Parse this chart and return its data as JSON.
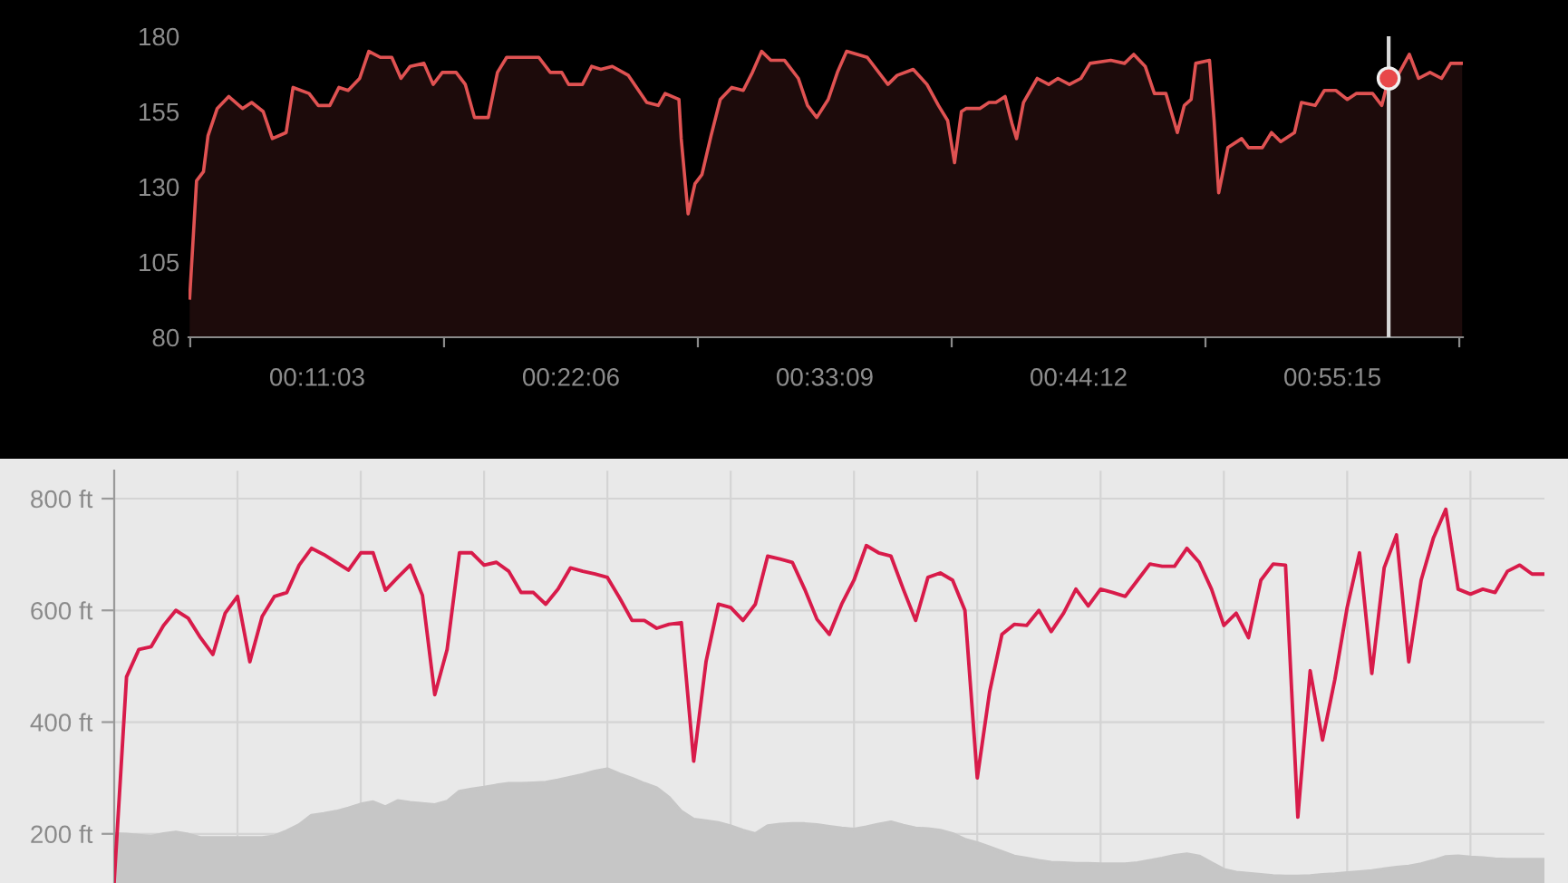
{
  "chart_data": [
    {
      "type": "area",
      "series": [
        {
          "color": "#e05252",
          "x": [
            5.5,
            5.8,
            6.1,
            6.3,
            6.7,
            7.2,
            7.8,
            8.2,
            8.7,
            9.1,
            9.7,
            10.0,
            10.7,
            11.1,
            11.6,
            12.0,
            12.4,
            12.9,
            13.3,
            13.8,
            14.3,
            14.7,
            15.1,
            15.7,
            16.1,
            16.5,
            17.1,
            17.5,
            17.9,
            18.5,
            18.9,
            19.3,
            20.7,
            21.2,
            21.7,
            22.0,
            22.6,
            23.0,
            23.4,
            23.9,
            24.6,
            25.4,
            25.9,
            26.2,
            26.8,
            26.9,
            27.2,
            27.5,
            27.8,
            28.2,
            28.6,
            29.1,
            29.6,
            30.0,
            30.4,
            30.8,
            31.4,
            32.0,
            32.4,
            32.8,
            33.3,
            33.7,
            34.1,
            35.0,
            35.9,
            36.3,
            37.0,
            37.6,
            38.1,
            38.5,
            38.8,
            39.1,
            39.3,
            39.9,
            40.3,
            40.6,
            41.0,
            41.3,
            41.5,
            41.8,
            42.4,
            42.9,
            43.3,
            43.8,
            44.3,
            44.7,
            45.6,
            46.2,
            46.6,
            47.1,
            47.5,
            48.0,
            48.5,
            48.8,
            49.1,
            49.3,
            49.9,
            50.1,
            50.3,
            50.7,
            51.3,
            51.6,
            52.2,
            52.6,
            53.0,
            53.6,
            53.9,
            54.5,
            54.9,
            55.4,
            55.9,
            56.3,
            57.0,
            57.4,
            57.7,
            58.1,
            58.6,
            59.0,
            59.5,
            60.0,
            60.4,
            60.9
          ],
          "values": [
            93,
            132,
            135,
            147,
            156,
            160,
            156,
            158,
            155,
            146,
            148,
            163,
            161,
            157,
            157,
            163,
            162,
            166,
            175,
            173,
            173,
            166,
            170,
            171,
            164,
            168,
            168,
            164,
            153,
            153,
            168,
            173,
            173,
            168,
            168,
            164,
            164,
            170,
            169,
            170,
            167,
            158,
            157,
            161,
            159,
            146,
            121,
            131,
            134,
            147,
            159,
            163,
            162,
            168,
            175,
            172,
            172,
            166,
            157,
            153,
            159,
            168,
            175,
            173,
            164,
            167,
            169,
            164,
            157,
            152,
            138,
            155,
            156,
            156,
            158,
            158,
            160,
            151,
            146,
            158,
            166,
            164,
            166,
            164,
            166,
            171,
            172,
            171,
            174,
            170,
            161,
            161,
            148,
            157,
            159,
            171,
            172,
            152,
            128,
            143,
            146,
            143,
            143,
            148,
            145,
            148,
            158,
            157,
            162,
            162,
            159,
            161,
            161,
            157,
            166,
            167,
            174,
            166,
            168,
            166,
            171,
            171
          ]
        },
        {
          "type": "scatter",
          "color": "#e8484a",
          "marker": "circle",
          "x": [
            57.7
          ],
          "values": [
            166
          ]
        }
      ],
      "xlim": [
        5.45,
        60.93
      ],
      "xticks": [
        {
          "value": 5.525,
          "label": null
        },
        {
          "value": 11.05,
          "label": "00:11:03"
        },
        {
          "value": 16.575,
          "label": null
        },
        {
          "value": 22.1,
          "label": "00:22:06"
        },
        {
          "value": 27.625,
          "label": null
        },
        {
          "value": 33.15,
          "label": "00:33:09"
        },
        {
          "value": 38.675,
          "label": null
        },
        {
          "value": 44.2,
          "label": "00:44:12"
        },
        {
          "value": 49.725,
          "label": null
        },
        {
          "value": 55.25,
          "label": "00:55:15"
        },
        {
          "value": 60.775,
          "label": null
        }
      ],
      "ylim": [
        80,
        180
      ],
      "yticks": [
        80,
        105,
        130,
        155,
        180
      ],
      "grid": false,
      "ref_lines": [
        {
          "axis": "x",
          "value": 57.7,
          "color": "#d9d9d9"
        }
      ]
    },
    {
      "type": "line",
      "categories": [
        null,
        null,
        null,
        null,
        null,
        null,
        null,
        null,
        null,
        null,
        null,
        null,
        null,
        null,
        null,
        null,
        null,
        null,
        null,
        null,
        null,
        null,
        null,
        null,
        null,
        null,
        null,
        null,
        null,
        null,
        null,
        null,
        null,
        null,
        null,
        null,
        null,
        null,
        null,
        null,
        null,
        null,
        null,
        null,
        null,
        null,
        null,
        null,
        null,
        null,
        null,
        null,
        null,
        null,
        null,
        null,
        null,
        null,
        null,
        null,
        null,
        null,
        null,
        null,
        null,
        null,
        null,
        null,
        null,
        null,
        null,
        null,
        null,
        null,
        null,
        null,
        null,
        null,
        null,
        null,
        null,
        null,
        null,
        null,
        null,
        null,
        null,
        null,
        null,
        null,
        null,
        null,
        null,
        null,
        null,
        null,
        null,
        null,
        null,
        null,
        null,
        null,
        null,
        null,
        null,
        null,
        null,
        null,
        null,
        null,
        null,
        null,
        null,
        null,
        null,
        null,
        null
      ],
      "series": [
        {
          "type": "area",
          "color": "#c6c6c6",
          "values": [
            200,
            199,
            197,
            195,
            200,
            203,
            199,
            193,
            193,
            193,
            193,
            193,
            193,
            196,
            205,
            216,
            233,
            236,
            240,
            246,
            253,
            257,
            248,
            259,
            256,
            254,
            252,
            258,
            276,
            280,
            283,
            287,
            290,
            290,
            291,
            292,
            296,
            301,
            306,
            312,
            316,
            307,
            299,
            290,
            282,
            265,
            240,
            226,
            223,
            220,
            214,
            206,
            200,
            214,
            217,
            218,
            218,
            216,
            213,
            210,
            208,
            212,
            217,
            221,
            215,
            210,
            209,
            206,
            200,
            190,
            184,
            176,
            168,
            160,
            156,
            152,
            149,
            148,
            147,
            147,
            146,
            146,
            146,
            148,
            152,
            156,
            161,
            164,
            160,
            148,
            136,
            131,
            129,
            127,
            125,
            124,
            124,
            125,
            127,
            128,
            130,
            132,
            134,
            137,
            140,
            142,
            146,
            152,
            159,
            160,
            158,
            157,
            155,
            154,
            154,
            154,
            154
          ]
        },
        {
          "color": "#d81b4a",
          "values": [
            115,
            481,
            530,
            535,
            573,
            600,
            586,
            551,
            521,
            595,
            625,
            508,
            589,
            625,
            632,
            681,
            711,
            700,
            686,
            672,
            703,
            703,
            636,
            659,
            681,
            627,
            449,
            530,
            703,
            703,
            681,
            686,
            670,
            632,
            632,
            611,
            638,
            676,
            670,
            665,
            659,
            622,
            582,
            582,
            568,
            575,
            578,
            330,
            508,
            611,
            605,
            582,
            611,
            697,
            692,
            686,
            638,
            584,
            557,
            611,
            654,
            716,
            703,
            697,
            638,
            582,
            659,
            667,
            654,
            600,
            300,
            454,
            557,
            575,
            573,
            600,
            562,
            595,
            638,
            608,
            638,
            632,
            625,
            654,
            683,
            679,
            679,
            711,
            686,
            638,
            573,
            595,
            551,
            654,
            683,
            681,
            230,
            492,
            368,
            476,
            605,
            703,
            487,
            676,
            735,
            508,
            654,
            730,
            781,
            638,
            629,
            638,
            632,
            670,
            681,
            665,
            665
          ]
        }
      ],
      "ylim": [
        112,
        850
      ],
      "yticks": [
        {
          "value": 200,
          "label": "200 ft"
        },
        {
          "value": 400,
          "label": "400 ft"
        },
        {
          "value": 600,
          "label": "600 ft"
        },
        {
          "value": 800,
          "label": "800 ft"
        }
      ],
      "grid": true,
      "tick_labels": "y"
    }
  ]
}
